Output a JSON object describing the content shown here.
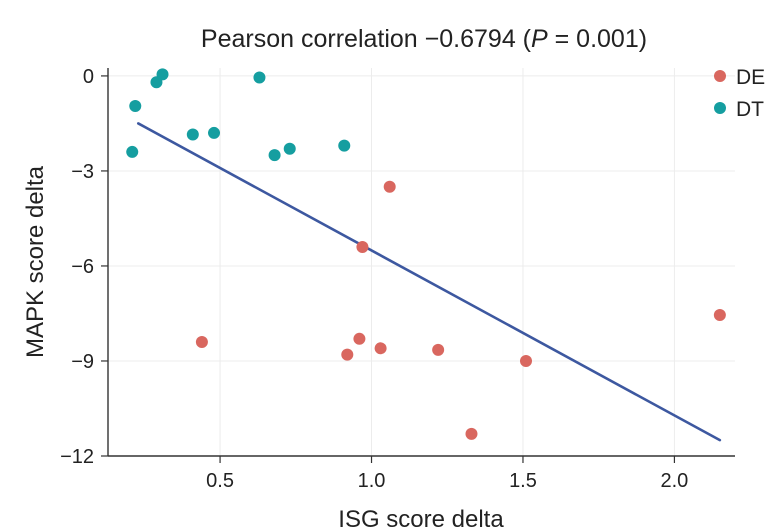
{
  "chart_data": {
    "type": "scatter",
    "title": "Pearson correlation −0.6794 (P = 0.001)",
    "title_parts": {
      "prefix": "Pearson correlation −0.6794 (",
      "italic": "P",
      "suffix": " = 0.001)"
    },
    "xlabel": "ISG score delta",
    "ylabel": "MAPK score delta",
    "xlim": [
      0.13,
      2.2
    ],
    "ylim": [
      -12,
      0.25
    ],
    "xticks": [
      0.5,
      1.0,
      1.5,
      2.0
    ],
    "xtick_labels": [
      "0.5",
      "1.0",
      "1.5",
      "2.0"
    ],
    "yticks": [
      0,
      -3,
      -6,
      -9,
      -12
    ],
    "ytick_labels": [
      "0",
      "−3",
      "−6",
      "−9",
      "−12"
    ],
    "grid": true,
    "legend_position": "top-right",
    "series": [
      {
        "name": "DE",
        "color": "#d9675f",
        "points": [
          {
            "x": 1.06,
            "y": -3.5
          },
          {
            "x": 0.97,
            "y": -5.4
          },
          {
            "x": 0.44,
            "y": -8.4
          },
          {
            "x": 0.96,
            "y": -8.3
          },
          {
            "x": 0.92,
            "y": -8.8
          },
          {
            "x": 1.03,
            "y": -8.6
          },
          {
            "x": 1.22,
            "y": -8.65
          },
          {
            "x": 1.51,
            "y": -9.0
          },
          {
            "x": 1.33,
            "y": -11.3
          },
          {
            "x": 2.15,
            "y": -7.55
          }
        ]
      },
      {
        "name": "DT",
        "color": "#159ea0",
        "points": [
          {
            "x": 0.31,
            "y": 0.05
          },
          {
            "x": 0.29,
            "y": -0.2
          },
          {
            "x": 0.63,
            "y": -0.05
          },
          {
            "x": 0.22,
            "y": -0.95
          },
          {
            "x": 0.41,
            "y": -1.85
          },
          {
            "x": 0.48,
            "y": -1.8
          },
          {
            "x": 0.21,
            "y": -2.4
          },
          {
            "x": 0.68,
            "y": -2.5
          },
          {
            "x": 0.73,
            "y": -2.3
          },
          {
            "x": 0.91,
            "y": -2.2
          }
        ]
      }
    ],
    "trend_line": {
      "color": "#3d58a0",
      "x": [
        0.23,
        2.15
      ],
      "y": [
        -1.5,
        -11.5
      ]
    }
  }
}
